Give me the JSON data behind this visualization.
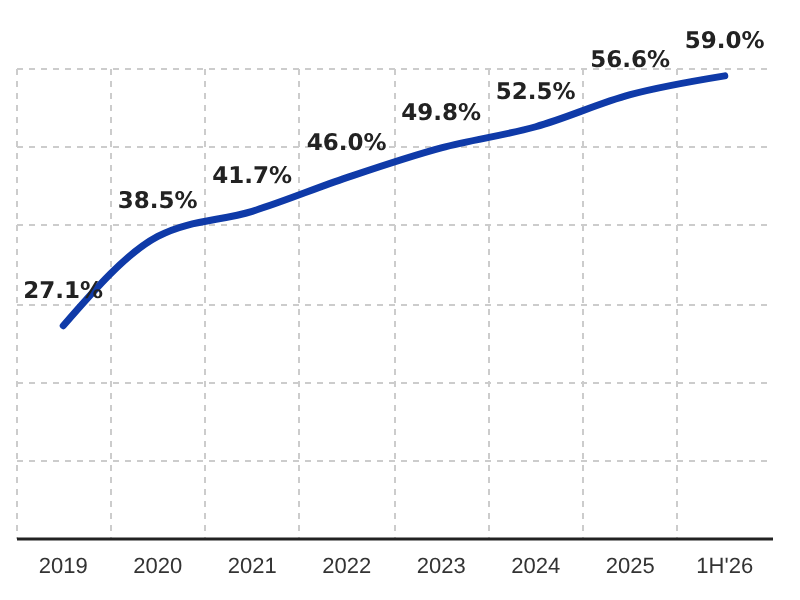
{
  "chart_data": {
    "type": "line",
    "categories": [
      "2019",
      "2020",
      "2021",
      "2022",
      "2023",
      "2024",
      "2025",
      "1H'26"
    ],
    "series": [
      {
        "color": "#0f3aa8",
        "values": [
          27.1,
          38.5,
          41.7,
          46.0,
          49.8,
          52.5,
          56.6,
          59.0
        ],
        "value_labels": [
          "27.1%",
          "38.5%",
          "41.7%",
          "46.0%",
          "49.8%",
          "52.5%",
          "56.6%",
          "59.0%"
        ]
      }
    ],
    "tick_labels": "x",
    "grid": true,
    "marker": "none",
    "line_style": "solid"
  }
}
